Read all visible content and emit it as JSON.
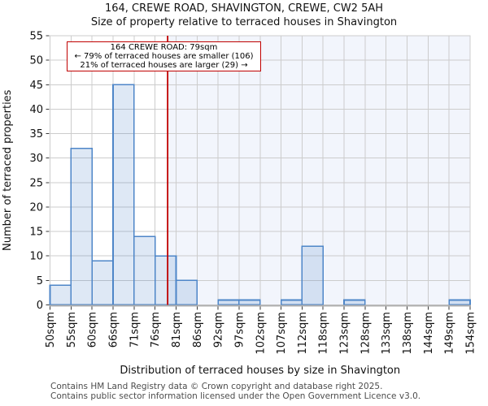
{
  "title": "164, CREWE ROAD, SHAVINGTON, CREWE, CW2 5AH",
  "subtitle": "Size of property relative to terraced houses in Shavington",
  "annotation": {
    "line1": "164 CREWE ROAD: 79sqm",
    "line2": "← 79% of terraced houses are smaller (106)",
    "line3": "21% of terraced houses are larger (29) →"
  },
  "footer": {
    "line1": "Contains HM Land Registry data © Crown copyright and database right 2025.",
    "line2": "Contains public sector information licensed under the Open Government Licence v3.0."
  },
  "chart_data": {
    "type": "bar",
    "title": "164, CREWE ROAD, SHAVINGTON, CREWE, CW2 5AH",
    "subtitle": "Size of property relative to terraced houses in Shavington",
    "xlabel": "Distribution of terraced houses by size in Shavington",
    "ylabel": "Number of terraced properties",
    "bin_labels": [
      "50sqm",
      "55sqm",
      "60sqm",
      "66sqm",
      "71sqm",
      "76sqm",
      "81sqm",
      "86sqm",
      "92sqm",
      "97sqm",
      "102sqm",
      "107sqm",
      "112sqm",
      "118sqm",
      "123sqm",
      "128sqm",
      "133sqm",
      "138sqm",
      "144sqm",
      "149sqm",
      "154sqm"
    ],
    "bin_edges_sqm": [
      50,
      55,
      60,
      66,
      71,
      76,
      81,
      86,
      92,
      97,
      102,
      107,
      112,
      118,
      123,
      128,
      133,
      138,
      144,
      149,
      154
    ],
    "counts": [
      4,
      32,
      9,
      45,
      14,
      10,
      5,
      0,
      1,
      1,
      0,
      1,
      12,
      0,
      1,
      0,
      0,
      0,
      0,
      1
    ],
    "ylim": [
      0,
      55
    ],
    "yticks": [
      0,
      5,
      10,
      15,
      20,
      25,
      30,
      35,
      40,
      45,
      50,
      55
    ],
    "grid": true,
    "legend": "none",
    "marker": {
      "value_sqm": 79,
      "label": "164 CREWE ROAD: 79sqm",
      "smaller_pct": 79,
      "smaller_count": 106,
      "larger_pct": 21,
      "larger_count": 29
    },
    "colors": {
      "bar_fill": "#4e86c8",
      "bar_fill_opacity": 0.19,
      "bar_edge": "#4e86c8",
      "marker_line": "#c00000",
      "annotation_border": "#c00000",
      "shade_right_of_marker": "#f2f5fc",
      "gridline": "#cccccc",
      "plot_border": "#cccccc",
      "axis_line": "#b0b0b0",
      "tick": "#3a3a3a",
      "footer_text": "#4d4d4d",
      "text": "#111111"
    }
  }
}
